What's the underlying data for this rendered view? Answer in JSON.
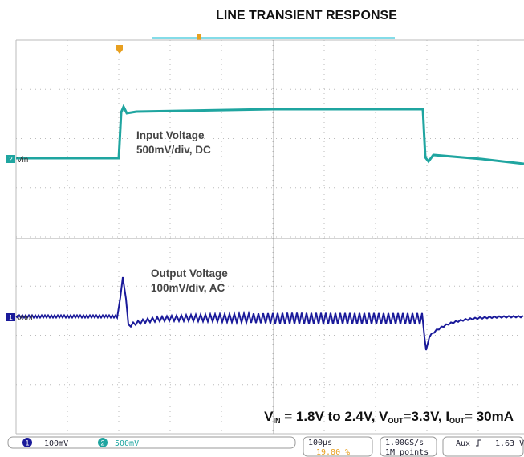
{
  "title": "LINE TRANSIENT RESPONSE",
  "input_label": {
    "name": "Input Voltage",
    "scale": "500mV/div, DC"
  },
  "output_label": {
    "name": "Output Voltage",
    "scale": "100mV/div, AC"
  },
  "channels": [
    {
      "number": "2",
      "name": "Vin"
    },
    {
      "number": "1",
      "name": "Vout"
    }
  ],
  "conditions": [
    "V",
    "IN",
    " = 1.8V to 2.4V, V",
    "OUT",
    "=3.3V, I",
    "OUT",
    "= 30mA"
  ],
  "status": {
    "ch1": "1",
    "ch1_scale": "100mV",
    "ch2": "2",
    "ch2_scale": "500mV",
    "timebase": "100µs",
    "trigger_pos": "19.80 %",
    "rate": "1.00GS/s",
    "points": "1M points",
    "trigger_src": "Aux",
    "trigger_level": "1.63 V"
  }
}
